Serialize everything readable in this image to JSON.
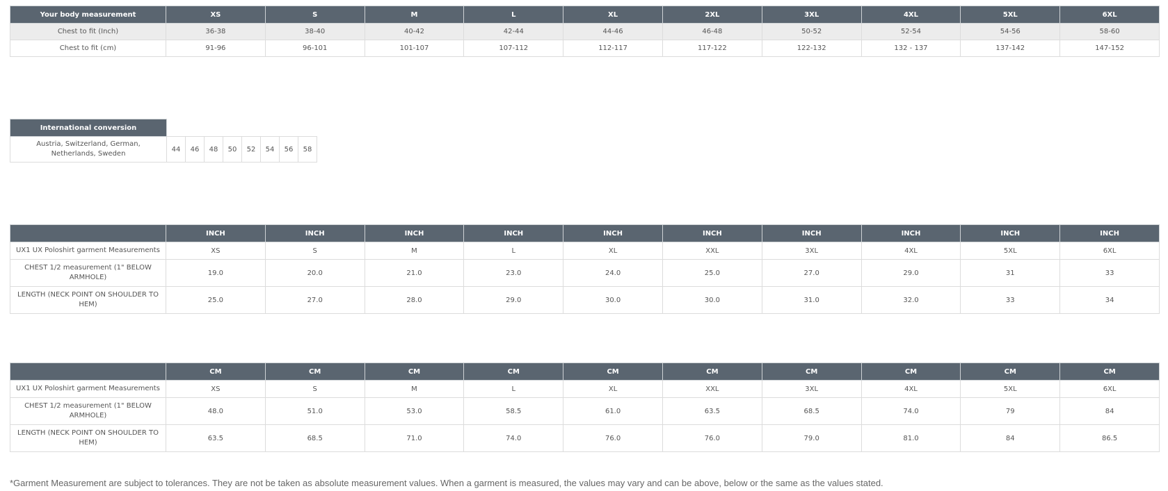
{
  "body_table": {
    "header_label": "Your body measurement",
    "sizes": [
      "XS",
      "S",
      "M",
      "L",
      "XL",
      "2XL",
      "3XL",
      "4XL",
      "5XL",
      "6XL"
    ],
    "rows": [
      {
        "label": "Chest to fit (Inch)",
        "values": [
          "36-38",
          "38-40",
          "40-42",
          "42-44",
          "44-46",
          "46-48",
          "50-52",
          "52-54",
          "54-56",
          "58-60"
        ]
      },
      {
        "label": "Chest to fit (cm)",
        "values": [
          "91-96",
          "96-101",
          "101-107",
          "107-112",
          "112-117",
          "117-122",
          "122-132",
          "132 - 137",
          "137-142",
          "147-152"
        ]
      }
    ]
  },
  "intl_table": {
    "header_label": "International conversion",
    "row_label": "Austria, Switzerland, German, Netherlands, Sweden",
    "values": [
      "44",
      "46",
      "48",
      "50",
      "52",
      "54",
      "56",
      "58"
    ]
  },
  "inch_table": {
    "unit_headers": [
      "INCH",
      "INCH",
      "INCH",
      "INCH",
      "INCH",
      "INCH",
      "INCH",
      "INCH",
      "INCH",
      "INCH"
    ],
    "rows": [
      {
        "label": "UX1 UX Poloshirt garment Measurements",
        "values": [
          "XS",
          "S",
          "M",
          "L",
          "XL",
          "XXL",
          "3XL",
          "4XL",
          "5XL",
          "6XL"
        ]
      },
      {
        "label": "CHEST 1/2 measurement (1\" BELOW ARMHOLE)",
        "values": [
          "19.0",
          "20.0",
          "21.0",
          "23.0",
          "24.0",
          "25.0",
          "27.0",
          "29.0",
          "31",
          "33"
        ]
      },
      {
        "label": "LENGTH (NECK POINT ON SHOULDER TO HEM)",
        "values": [
          "25.0",
          "27.0",
          "28.0",
          "29.0",
          "30.0",
          "30.0",
          "31.0",
          "32.0",
          "33",
          "34"
        ]
      }
    ]
  },
  "cm_table": {
    "unit_headers": [
      "CM",
      "CM",
      "CM",
      "CM",
      "CM",
      "CM",
      "CM",
      "CM",
      "CM",
      "CM"
    ],
    "rows": [
      {
        "label": "UX1 UX Poloshirt garment Measurements",
        "values": [
          "XS",
          "S",
          "M",
          "L",
          "XL",
          "XXL",
          "3XL",
          "4XL",
          "5XL",
          "6XL"
        ]
      },
      {
        "label": "CHEST 1/2 measurement (1\" BELOW ARMHOLE)",
        "values": [
          "48.0",
          "51.0",
          "53.0",
          "58.5",
          "61.0",
          "63.5",
          "68.5",
          "74.0",
          "79",
          "84"
        ]
      },
      {
        "label": "LENGTH (NECK POINT ON SHOULDER TO HEM)",
        "values": [
          "63.5",
          "68.5",
          "71.0",
          "74.0",
          "76.0",
          "76.0",
          "79.0",
          "81.0",
          "84",
          "86.5"
        ]
      }
    ]
  },
  "footnote": "*Garment Measurement are subject to tolerances. They are not be taken as absolute measurement values. When a garment is measured, the values may vary and can be above, below or the same as the values stated."
}
